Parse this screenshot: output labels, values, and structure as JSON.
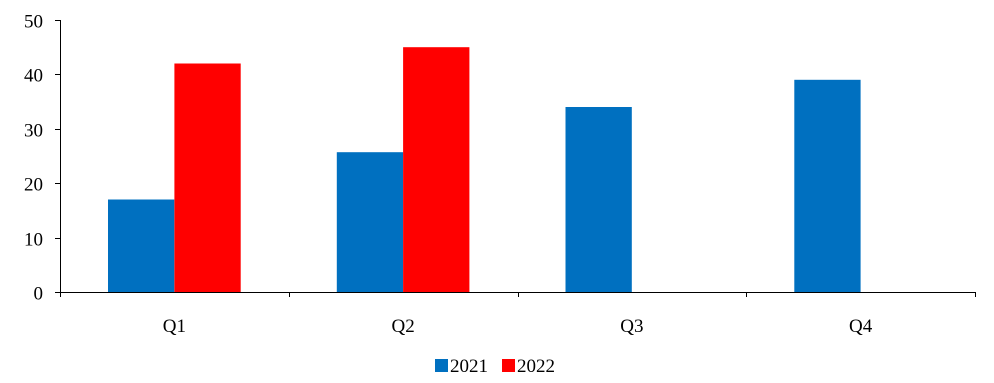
{
  "chart_data": {
    "type": "bar",
    "categories": [
      "Q1",
      "Q2",
      "Q3",
      "Q4"
    ],
    "series": [
      {
        "name": "2021",
        "values": [
          17,
          25.7,
          34,
          39
        ],
        "color": "#0070C0"
      },
      {
        "name": "2022",
        "values": [
          42,
          45,
          null,
          null
        ],
        "color": "#FF0000"
      }
    ],
    "title": "",
    "xlabel": "",
    "ylabel": "",
    "ylim": [
      0,
      50
    ],
    "yticks": [
      0,
      10,
      20,
      30,
      40,
      50
    ],
    "grid": false,
    "legend_position": "bottom-center"
  }
}
